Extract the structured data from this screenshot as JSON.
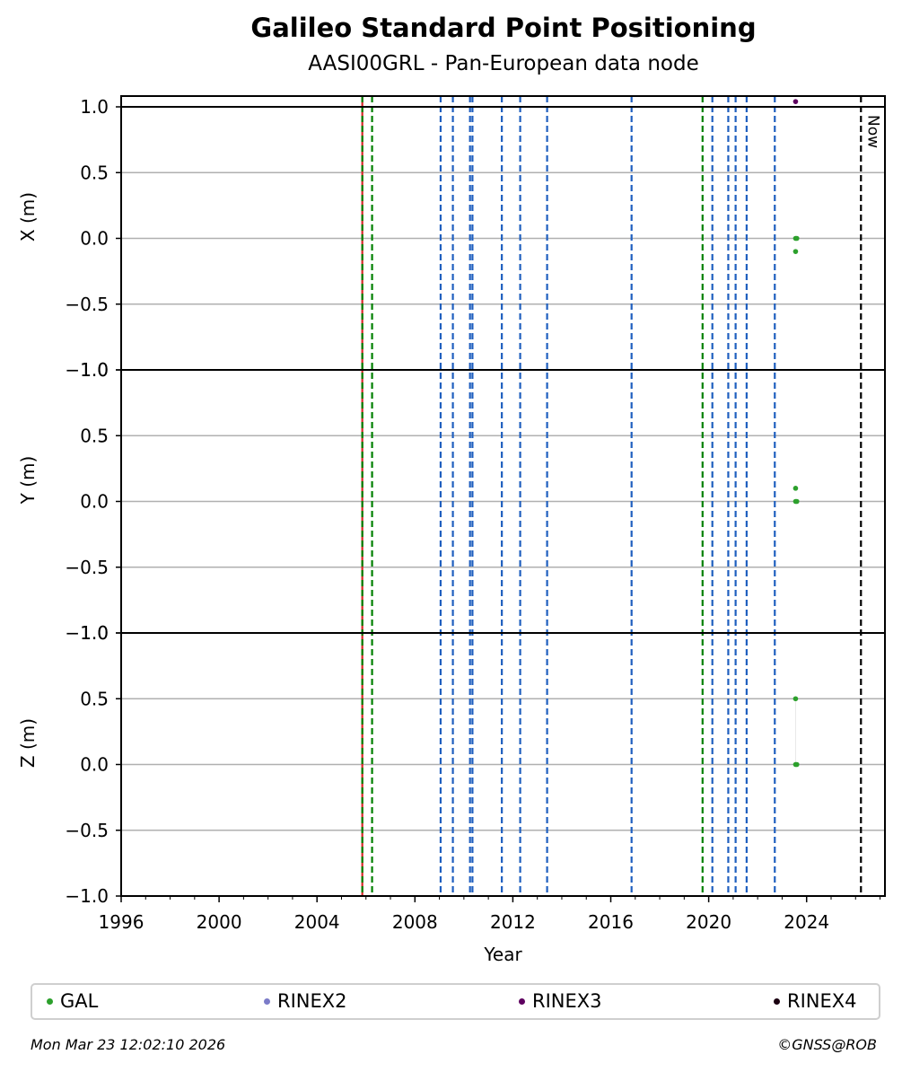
{
  "header": {
    "title": "Galileo Standard Point Positioning",
    "subtitle": "AASI00GRL - Pan-European data node"
  },
  "footer": {
    "timestamp": "Mon Mar 23 12:02:10 2026",
    "copyright": "©GNSS@ROB"
  },
  "legend": [
    {
      "label": "GAL",
      "color": "#2ca02c"
    },
    {
      "label": "RINEX2",
      "color": "#7b7bc8"
    },
    {
      "label": "RINEX3",
      "color": "#5e0060"
    },
    {
      "label": "RINEX4",
      "color": "#1a0010"
    }
  ],
  "chart_data": {
    "type": "scatter",
    "title": "Galileo Standard Point Positioning",
    "subtitle": "AASI00GRL - Pan-European data node",
    "xlabel": "Year",
    "xlim": [
      1996.0,
      2027.2
    ],
    "x_ticks": [
      1996,
      2000,
      2004,
      2008,
      2012,
      2016,
      2020,
      2024
    ],
    "grid": true,
    "panels": [
      {
        "ylabel": "X (m)",
        "ylim": [
          -1.0,
          1.0
        ],
        "yticks": [
          "−1.0",
          "−0.5",
          "0.0",
          "0.5",
          "1.0"
        ],
        "ytick_values": [
          -1.0,
          -0.5,
          0.0,
          0.5,
          1.0
        ]
      },
      {
        "ylabel": "Y (m)",
        "ylim": [
          -1.0,
          1.0
        ],
        "yticks": [
          "−1.0",
          "−0.5",
          "0.0",
          "0.5",
          "1.0"
        ],
        "ytick_values": [
          -1.0,
          -0.5,
          0.0,
          0.5,
          1.0
        ]
      },
      {
        "ylabel": "Z (m)",
        "ylim": [
          -1.0,
          1.0
        ],
        "yticks": [
          "−1.0",
          "−0.5",
          "0.0",
          "0.5",
          "1.0"
        ],
        "ytick_values": [
          -1.0,
          -0.5,
          0.0,
          0.5,
          1.0
        ]
      }
    ],
    "series": [
      {
        "name": "GAL",
        "color": "#2ca02c",
        "panel": 0,
        "x": [
          2023.55,
          2023.6,
          2023.55
        ],
        "y": [
          0.0,
          0.0,
          -0.1
        ]
      },
      {
        "name": "GAL",
        "color": "#2ca02c",
        "panel": 1,
        "x": [
          2023.55,
          2023.6,
          2023.55
        ],
        "y": [
          0.0,
          0.0,
          0.1
        ]
      },
      {
        "name": "GAL",
        "color": "#2ca02c",
        "panel": 2,
        "x": [
          2023.55,
          2023.6,
          2023.55
        ],
        "y": [
          0.0,
          0.0,
          0.5
        ]
      },
      {
        "name": "RINEX3",
        "color": "#5e0060",
        "panel": 0,
        "x": [
          2023.55
        ],
        "y": [
          1.04
        ]
      }
    ],
    "event_lines": [
      {
        "x": 2005.85,
        "color": "#d62728",
        "style": "solid"
      },
      {
        "x": 2005.85,
        "color": "#008000",
        "style": "dashed"
      },
      {
        "x": 2006.25,
        "color": "#008000",
        "style": "dashed"
      },
      {
        "x": 2009.05,
        "color": "#1f5fbf",
        "style": "dashed"
      },
      {
        "x": 2009.55,
        "color": "#1f5fbf",
        "style": "dashed"
      },
      {
        "x": 2010.25,
        "color": "#1f5fbf",
        "style": "dashed"
      },
      {
        "x": 2010.35,
        "color": "#1f5fbf",
        "style": "dashed"
      },
      {
        "x": 2011.55,
        "color": "#1f5fbf",
        "style": "dashed"
      },
      {
        "x": 2012.3,
        "color": "#1f5fbf",
        "style": "dashed"
      },
      {
        "x": 2013.4,
        "color": "#1f5fbf",
        "style": "dashed"
      },
      {
        "x": 2016.85,
        "color": "#1f5fbf",
        "style": "dashed"
      },
      {
        "x": 2019.75,
        "color": "#008000",
        "style": "dashed"
      },
      {
        "x": 2020.15,
        "color": "#1f5fbf",
        "style": "dashed"
      },
      {
        "x": 2020.8,
        "color": "#1f5fbf",
        "style": "dashed"
      },
      {
        "x": 2021.1,
        "color": "#1f5fbf",
        "style": "dashed"
      },
      {
        "x": 2021.55,
        "color": "#1f5fbf",
        "style": "dashed"
      },
      {
        "x": 2022.7,
        "color": "#1f5fbf",
        "style": "dashed"
      },
      {
        "x": 2026.22,
        "color": "#000000",
        "style": "dashed",
        "label": "Now"
      }
    ]
  }
}
